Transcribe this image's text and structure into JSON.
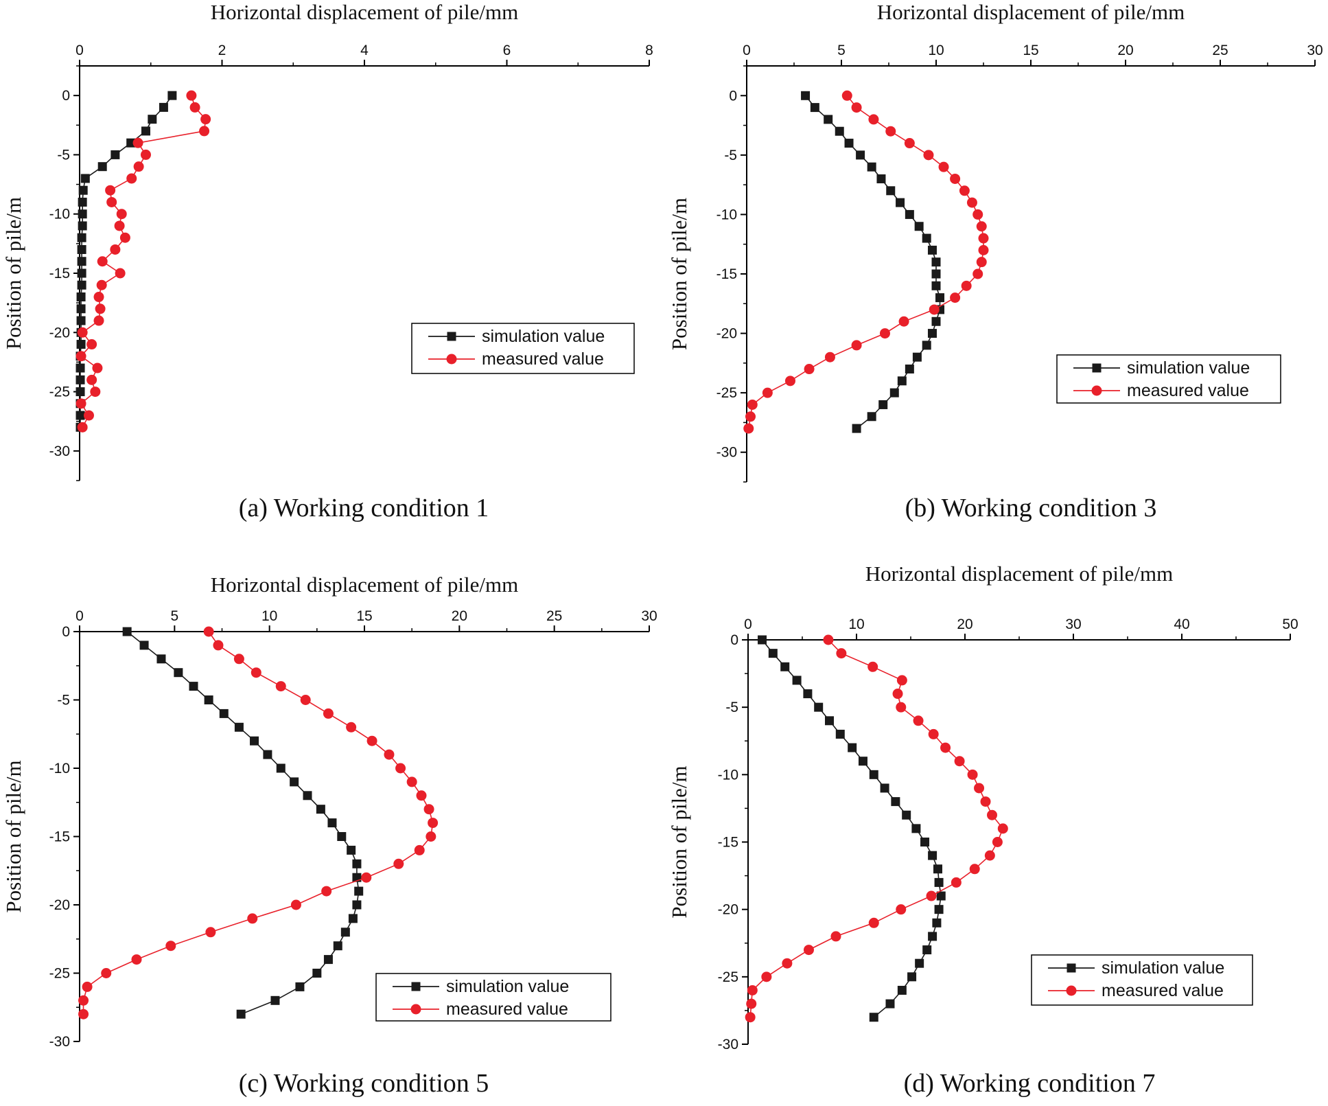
{
  "chart_data": [
    {
      "type": "line",
      "caption": "(a) Working condition 1",
      "xlabel": "Horizontal displacement of pile/mm",
      "ylabel": "Position of pile/m",
      "xlim": [
        0,
        8
      ],
      "ylim": [
        -32.5,
        2.5
      ],
      "xticks": [
        0,
        2,
        4,
        6,
        8
      ],
      "xtick_labels": [
        "0",
        "2",
        "4",
        "6",
        "8"
      ],
      "yticks": [
        0,
        -5,
        -10,
        -15,
        -20,
        -25,
        -30
      ],
      "ytick_labels": [
        "0",
        "-5",
        "-10",
        "-15",
        "-20",
        "-25",
        "-30"
      ],
      "legend_position": "center-right",
      "series": [
        {
          "name": "simulation value",
          "color": "#1a1a1a",
          "marker": "square",
          "x": [
            1.3,
            1.18,
            1.02,
            0.93,
            0.72,
            0.5,
            0.32,
            0.08,
            0.05,
            0.04,
            0.04,
            0.04,
            0.03,
            0.03,
            0.03,
            0.03,
            0.03,
            0.02,
            0.02,
            0.02,
            0.02,
            0.02,
            0.01,
            0.01,
            0.01,
            0.01,
            0.01,
            0.01,
            0.01
          ],
          "y": [
            0,
            -1,
            -2,
            -3,
            -4,
            -5,
            -6,
            -7,
            -8,
            -9,
            -10,
            -11,
            -12,
            -13,
            -14,
            -15,
            -16,
            -17,
            -18,
            -19,
            -20,
            -21,
            -22,
            -23,
            -24,
            -25,
            -26,
            -27,
            -28
          ]
        },
        {
          "name": "measured value",
          "color": "#e8202a",
          "marker": "circle",
          "x": [
            1.57,
            1.62,
            1.77,
            1.75,
            0.82,
            0.93,
            0.83,
            0.73,
            0.43,
            0.45,
            0.59,
            0.56,
            0.64,
            0.5,
            0.32,
            0.57,
            0.31,
            0.27,
            0.29,
            0.27,
            0.04,
            0.17,
            0.02,
            0.25,
            0.17,
            0.22,
            0.02,
            0.13,
            0.04
          ],
          "y": [
            0,
            -1,
            -2,
            -3,
            -4,
            -5,
            -6,
            -7,
            -8,
            -9,
            -10,
            -11,
            -12,
            -13,
            -14,
            -15,
            -16,
            -17,
            -18,
            -19,
            -20,
            -21,
            -22,
            -23,
            -24,
            -25,
            -26,
            -27,
            -28
          ]
        }
      ]
    },
    {
      "type": "line",
      "caption": "(b) Working condition 3",
      "xlabel": "Horizontal displacement of pile/mm",
      "ylabel": "Position of pile/m",
      "xlim": [
        0,
        30
      ],
      "ylim": [
        -32.5,
        2.5
      ],
      "xticks": [
        0,
        5,
        10,
        15,
        20,
        25,
        30
      ],
      "xtick_labels": [
        "0",
        "5",
        "10",
        "15",
        "20",
        "25",
        "30"
      ],
      "yticks": [
        0,
        -5,
        -10,
        -15,
        -20,
        -25,
        -30
      ],
      "ytick_labels": [
        "0",
        "-5",
        "-10",
        "-15",
        "-20",
        "-25",
        "-30"
      ],
      "legend_position": "lower-right",
      "series": [
        {
          "name": "simulation value",
          "color": "#1a1a1a",
          "marker": "square",
          "x": [
            3.1,
            3.6,
            4.3,
            4.9,
            5.4,
            6.0,
            6.6,
            7.1,
            7.6,
            8.1,
            8.6,
            9.1,
            9.5,
            9.8,
            10.0,
            10.0,
            10.0,
            10.2,
            10.2,
            10.0,
            9.8,
            9.5,
            9.0,
            8.6,
            8.2,
            7.8,
            7.2,
            6.6,
            5.8
          ],
          "y": [
            0,
            -1,
            -2,
            -3,
            -4,
            -5,
            -6,
            -7,
            -8,
            -9,
            -10,
            -11,
            -12,
            -13,
            -14,
            -15,
            -16,
            -17,
            -18,
            -19,
            -20,
            -21,
            -22,
            -23,
            -24,
            -25,
            -26,
            -27,
            -28
          ]
        },
        {
          "name": "measured value",
          "color": "#e8202a",
          "marker": "circle",
          "x": [
            5.3,
            5.8,
            6.7,
            7.6,
            8.6,
            9.6,
            10.4,
            11.0,
            11.5,
            11.9,
            12.2,
            12.4,
            12.5,
            12.5,
            12.4,
            12.2,
            11.6,
            11.0,
            9.9,
            8.3,
            7.3,
            5.8,
            4.4,
            3.3,
            2.3,
            1.1,
            0.3,
            0.2,
            0.1
          ],
          "y": [
            0,
            -1,
            -2,
            -3,
            -4,
            -5,
            -6,
            -7,
            -8,
            -9,
            -10,
            -11,
            -12,
            -13,
            -14,
            -15,
            -16,
            -17,
            -18,
            -19,
            -20,
            -21,
            -22,
            -23,
            -24,
            -25,
            -26,
            -27,
            -28
          ]
        }
      ]
    },
    {
      "type": "line",
      "caption": "(c) Working condition 5",
      "xlabel": "Horizontal displacement of pile/mm",
      "ylabel": "Position of pile/m",
      "xlim": [
        0,
        30
      ],
      "ylim": [
        -30,
        0
      ],
      "xticks": [
        0,
        5,
        10,
        15,
        20,
        25,
        30
      ],
      "xtick_labels": [
        "0",
        "5",
        "10",
        "15",
        "20",
        "25",
        "30"
      ],
      "yticks": [
        0,
        -5,
        -10,
        -15,
        -20,
        -25,
        -30
      ],
      "ytick_labels": [
        "0",
        "-5",
        "-10",
        "-15",
        "-20",
        "-25",
        "-30"
      ],
      "legend_position": "lower-right",
      "series": [
        {
          "name": "simulation value",
          "color": "#1a1a1a",
          "marker": "square",
          "x": [
            2.5,
            3.4,
            4.3,
            5.2,
            6.0,
            6.8,
            7.6,
            8.4,
            9.2,
            9.9,
            10.6,
            11.3,
            12.0,
            12.7,
            13.3,
            13.8,
            14.3,
            14.6,
            14.6,
            14.7,
            14.6,
            14.4,
            14.0,
            13.6,
            13.1,
            12.5,
            11.6,
            10.3,
            8.5
          ],
          "y": [
            0,
            -1,
            -2,
            -3,
            -4,
            -5,
            -6,
            -7,
            -8,
            -9,
            -10,
            -11,
            -12,
            -13,
            -14,
            -15,
            -16,
            -17,
            -18,
            -19,
            -20,
            -21,
            -22,
            -23,
            -24,
            -25,
            -26,
            -27,
            -28
          ]
        },
        {
          "name": "measured value",
          "color": "#e8202a",
          "marker": "circle",
          "x": [
            6.8,
            7.3,
            8.4,
            9.3,
            10.6,
            11.9,
            13.1,
            14.3,
            15.4,
            16.3,
            16.9,
            17.5,
            18.0,
            18.4,
            18.6,
            18.5,
            17.9,
            16.8,
            15.1,
            13.0,
            11.4,
            9.1,
            6.9,
            4.8,
            3.0,
            1.4,
            0.4,
            0.2,
            0.2
          ],
          "y": [
            0,
            -1,
            -2,
            -3,
            -4,
            -5,
            -6,
            -7,
            -8,
            -9,
            -10,
            -11,
            -12,
            -13,
            -14,
            -15,
            -16,
            -17,
            -18,
            -19,
            -20,
            -21,
            -22,
            -23,
            -24,
            -25,
            -26,
            -27,
            -28
          ]
        }
      ]
    },
    {
      "type": "line",
      "caption": "(d) Working condition 7",
      "xlabel": "Horizontal displacement of pile/mm",
      "ylabel": "Position of pile/m",
      "xlim": [
        0,
        50
      ],
      "ylim": [
        -30,
        0
      ],
      "xticks": [
        0,
        10,
        20,
        30,
        40,
        50
      ],
      "xtick_labels": [
        "0",
        "10",
        "20",
        "30",
        "40",
        "50"
      ],
      "yticks": [
        0,
        -5,
        -10,
        -15,
        -20,
        -25,
        -30
      ],
      "ytick_labels": [
        "0",
        "-5",
        "-10",
        "-15",
        "-20",
        "-25",
        "-30"
      ],
      "legend_position": "lower-right",
      "series": [
        {
          "name": "simulation value",
          "color": "#1a1a1a",
          "marker": "square",
          "x": [
            1.3,
            2.3,
            3.4,
            4.5,
            5.5,
            6.5,
            7.5,
            8.5,
            9.6,
            10.6,
            11.6,
            12.6,
            13.6,
            14.6,
            15.5,
            16.3,
            17.0,
            17.5,
            17.6,
            17.8,
            17.6,
            17.4,
            17.0,
            16.5,
            15.8,
            15.1,
            14.2,
            13.1,
            11.6
          ],
          "y": [
            0,
            -1,
            -2,
            -3,
            -4,
            -5,
            -6,
            -7,
            -8,
            -9,
            -10,
            -11,
            -12,
            -13,
            -14,
            -15,
            -16,
            -17,
            -18,
            -19,
            -20,
            -21,
            -22,
            -23,
            -24,
            -25,
            -26,
            -27,
            -28
          ]
        },
        {
          "name": "measured value",
          "color": "#e8202a",
          "marker": "circle",
          "x": [
            7.4,
            8.6,
            11.5,
            14.2,
            13.8,
            14.1,
            15.7,
            17.1,
            18.2,
            19.5,
            20.7,
            21.3,
            21.9,
            22.5,
            23.5,
            23.0,
            22.3,
            20.9,
            19.2,
            16.9,
            14.1,
            11.6,
            8.1,
            5.6,
            3.6,
            1.7,
            0.4,
            0.3,
            0.2
          ],
          "y": [
            0,
            -1,
            -2,
            -3,
            -4,
            -5,
            -6,
            -7,
            -8,
            -9,
            -10,
            -11,
            -12,
            -13,
            -14,
            -15,
            -16,
            -17,
            -18,
            -19,
            -20,
            -21,
            -22,
            -23,
            -24,
            -25,
            -26,
            -27,
            -28
          ]
        }
      ]
    }
  ]
}
